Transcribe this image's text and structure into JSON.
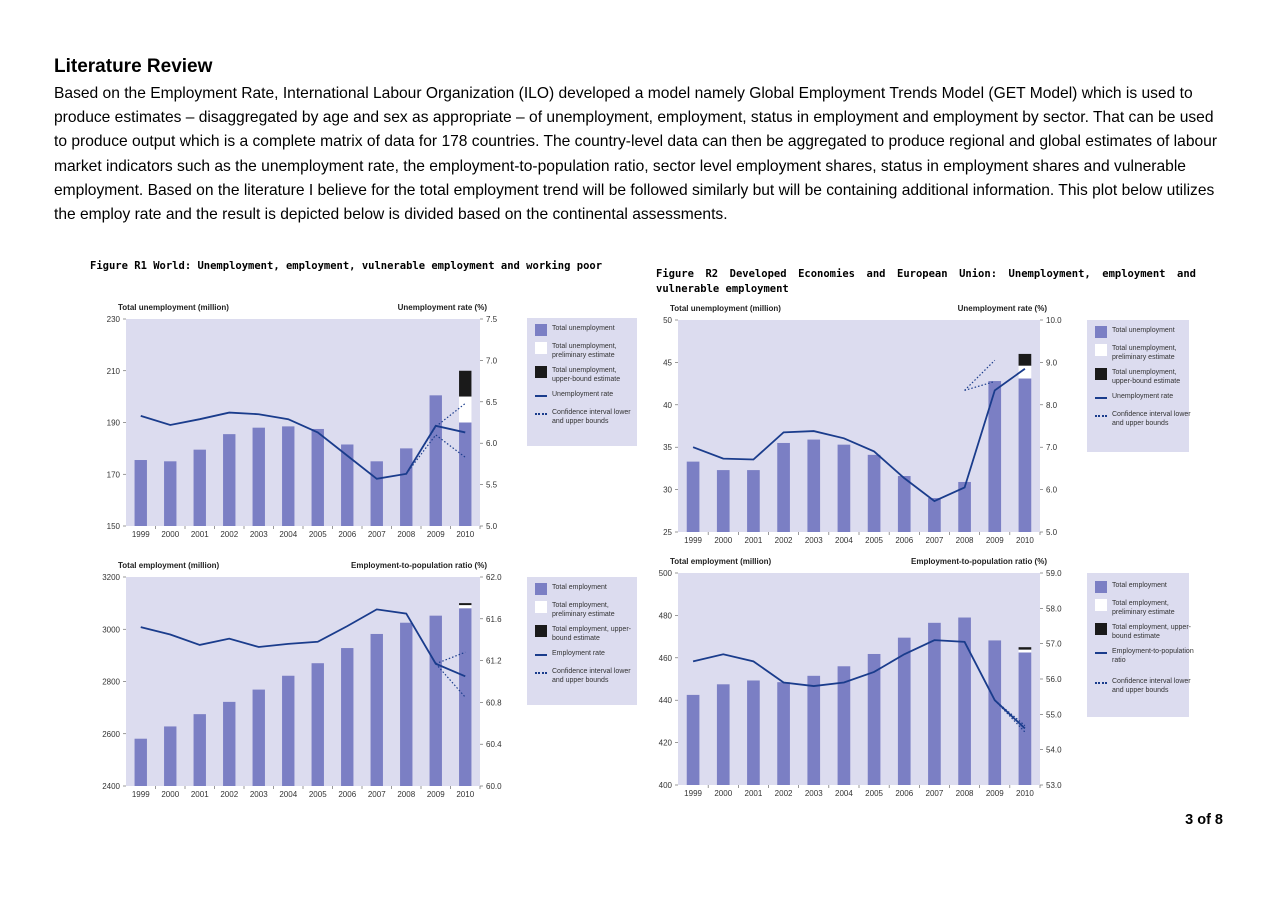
{
  "section_heading": "Literature Review",
  "paragraph": "Based on the Employment Rate, International Labour Organization (ILO) developed a model namely Global Employment Trends Model (GET Model) which is used to produce estimates – disaggregated by age and sex as appropriate – of unemployment, employment, status in employment and employment by sector. That can be used to produce output which is a complete matrix of data for 178 countries. The country-level data can then be aggregated to produce regional and global estimates of labour market indicators such as the unemployment rate, the employment-to-population ratio, sector level employment shares, status in employment shares and vulnerable employment. Based on the literature I believe for the total employment trend will be followed similarly but will be containing additional information. This plot below utilizes the employ rate and the result is depicted below is divided based on the continental assessments.",
  "figure_r1_title": "Figure R1 World: Unemployment, employment, vulnerable employment and working poor",
  "figure_r2_title": "Figure R2 Developed Economies and European Union: Unemployment, employment and vulnerable employment",
  "page_number": "3 of 8",
  "colors": {
    "bar": "#7b7fc4",
    "line": "#1a3c8c",
    "panel_bg": "#dcdcef",
    "upper_bound": "#1a1a1a"
  },
  "chart_data": [
    {
      "id": "r1-top",
      "type": "bar",
      "left_axis_title": "Total unemployment (million)",
      "right_axis_title": "Unemployment rate (%)",
      "categories": [
        "1999",
        "2000",
        "2001",
        "2002",
        "2003",
        "2004",
        "2005",
        "2006",
        "2007",
        "2008",
        "2009",
        "2010"
      ],
      "ylim": [
        150,
        230
      ],
      "yticks": [
        150,
        170,
        190,
        210,
        230
      ],
      "y2lim": [
        5.0,
        7.5
      ],
      "y2ticks": [
        "5.0",
        "5.5",
        "6.0",
        "6.5",
        "7.0",
        "7.5"
      ],
      "series": [
        {
          "name": "Total unemployment",
          "kind": "bar",
          "values": [
            175.5,
            175,
            179.5,
            185.5,
            188,
            188.5,
            187.5,
            181.5,
            175,
            180,
            200.5,
            190
          ]
        },
        {
          "name": "Total unemployment, preliminary estimate",
          "kind": "bar-white",
          "values": [
            null,
            null,
            null,
            null,
            null,
            null,
            null,
            null,
            null,
            null,
            null,
            200
          ]
        },
        {
          "name": "Total unemployment, upper-bound estimate",
          "kind": "bar-black",
          "values": [
            null,
            null,
            null,
            null,
            null,
            null,
            null,
            null,
            null,
            null,
            null,
            210
          ]
        },
        {
          "name": "Unemployment rate",
          "kind": "line",
          "axis": "right",
          "values": [
            6.33,
            6.22,
            6.29,
            6.37,
            6.35,
            6.29,
            6.13,
            5.85,
            5.57,
            5.63,
            6.21,
            6.13
          ]
        },
        {
          "name": "Confidence interval lower and upper bounds",
          "kind": "ci",
          "axis": "right",
          "from_index": 9,
          "start": 5.63,
          "upper": [
            6.2,
            6.48
          ],
          "lower": [
            6.1,
            5.83
          ]
        }
      ],
      "legend": [
        "Total unemployment",
        "Total unemployment, preliminary estimate",
        "Total unemployment, upper-bound estimate",
        "Unemployment rate",
        "Confidence interval lower and upper bounds"
      ]
    },
    {
      "id": "r1-bottom",
      "type": "bar",
      "left_axis_title": "Total employment (million)",
      "right_axis_title": "Employment-to-population ratio (%)",
      "categories": [
        "1999",
        "2000",
        "2001",
        "2002",
        "2003",
        "2004",
        "2005",
        "2006",
        "2007",
        "2008",
        "2009",
        "2010"
      ],
      "ylim": [
        2400,
        3200
      ],
      "yticks": [
        2400,
        2600,
        2800,
        3000,
        3200
      ],
      "y2lim": [
        60.0,
        62.0
      ],
      "y2ticks": [
        "60.0",
        "60.4",
        "60.8",
        "61.2",
        "61.6",
        "62.0"
      ],
      "series": [
        {
          "name": "Total employment",
          "kind": "bar",
          "values": [
            2581,
            2628,
            2675,
            2722,
            2769,
            2822,
            2870,
            2928,
            2982,
            3025,
            3052,
            3080
          ]
        },
        {
          "name": "Total employment, preliminary estimate",
          "kind": "bar-white",
          "values": [
            null,
            null,
            null,
            null,
            null,
            null,
            null,
            null,
            null,
            null,
            null,
            3092
          ]
        },
        {
          "name": "Total employment, upper-bound estimate",
          "kind": "bar-black",
          "values": [
            null,
            null,
            null,
            null,
            null,
            null,
            null,
            null,
            null,
            null,
            null,
            3100
          ]
        },
        {
          "name": "Employment rate",
          "kind": "line",
          "axis": "right",
          "values": [
            61.52,
            61.45,
            61.35,
            61.41,
            61.33,
            61.36,
            61.38,
            61.53,
            61.69,
            61.65,
            61.17,
            61.05
          ]
        },
        {
          "name": "Confidence interval lower and upper bounds",
          "kind": "ci",
          "axis": "right",
          "from_index": 10,
          "start": 61.17,
          "upper": [
            61.28
          ],
          "lower": [
            60.85
          ]
        }
      ],
      "legend": [
        "Total employment",
        "Total employment, preliminary estimate",
        "Total employment, upper-bound estimate",
        "Employment rate",
        "Confidence interval lower and upper bounds"
      ]
    },
    {
      "id": "r2-top",
      "type": "bar",
      "left_axis_title": "Total unemployment (million)",
      "right_axis_title": "Unemployment rate (%)",
      "categories": [
        "1999",
        "2000",
        "2001",
        "2002",
        "2003",
        "2004",
        "2005",
        "2006",
        "2007",
        "2008",
        "2009",
        "2010"
      ],
      "ylim": [
        25,
        50
      ],
      "yticks": [
        25,
        30,
        35,
        40,
        45,
        50
      ],
      "y2lim": [
        5.0,
        10.0
      ],
      "y2ticks": [
        "5.0",
        "6.0",
        "7.0",
        "8.0",
        "9.0",
        "10.0"
      ],
      "series": [
        {
          "name": "Total unemployment",
          "kind": "bar",
          "values": [
            33.3,
            32.3,
            32.3,
            35.5,
            35.9,
            35.3,
            34.1,
            31.6,
            29.0,
            30.9,
            42.8,
            43.1
          ]
        },
        {
          "name": "Total unemployment, preliminary estimate",
          "kind": "bar-white",
          "values": [
            null,
            null,
            null,
            null,
            null,
            null,
            null,
            null,
            null,
            null,
            null,
            44.6
          ]
        },
        {
          "name": "Total unemployment, upper-bound estimate",
          "kind": "bar-black",
          "values": [
            null,
            null,
            null,
            null,
            null,
            null,
            null,
            null,
            null,
            null,
            null,
            46.0
          ]
        },
        {
          "name": "Unemployment rate",
          "kind": "line",
          "axis": "right",
          "values": [
            7.0,
            6.73,
            6.71,
            7.35,
            7.38,
            7.21,
            6.9,
            6.27,
            5.73,
            6.05,
            8.34,
            8.85
          ]
        },
        {
          "name": "Confidence interval lower and upper bounds",
          "kind": "ci",
          "axis": "right",
          "from_index": 9,
          "start": 8.34,
          "upper": [
            9.05
          ],
          "lower": [
            8.55
          ]
        }
      ],
      "legend": [
        "Total unemployment",
        "Total unemployment, preliminary estimate",
        "Total unemployment, upper-bound estimate",
        "Unemployment rate",
        "Confidence interval lower and upper bounds"
      ]
    },
    {
      "id": "r2-bottom",
      "type": "bar",
      "left_axis_title": "Total employment (million)",
      "right_axis_title": "Employment-to-population ratio (%)",
      "categories": [
        "1999",
        "2000",
        "2001",
        "2002",
        "2003",
        "2004",
        "2005",
        "2006",
        "2007",
        "2008",
        "2009",
        "2010"
      ],
      "ylim": [
        400,
        500
      ],
      "yticks": [
        400,
        420,
        440,
        460,
        480,
        500
      ],
      "y2lim": [
        53.0,
        59.0
      ],
      "y2ticks": [
        "53.0",
        "54.0",
        "55.0",
        "56.0",
        "57.0",
        "58.0",
        "59.0"
      ],
      "series": [
        {
          "name": "Total employment",
          "kind": "bar",
          "values": [
            442.5,
            447.5,
            449.3,
            448.5,
            451.5,
            456,
            461.8,
            469.5,
            476.5,
            479,
            468.2,
            462.5
          ]
        },
        {
          "name": "Total employment, preliminary estimate",
          "kind": "bar-white",
          "values": [
            null,
            null,
            null,
            null,
            null,
            null,
            null,
            null,
            null,
            null,
            null,
            463.8
          ]
        },
        {
          "name": "Total employment, upper-bound estimate",
          "kind": "bar-black",
          "values": [
            null,
            null,
            null,
            null,
            null,
            null,
            null,
            null,
            null,
            null,
            null,
            465
          ]
        },
        {
          "name": "Employment-to-population ratio",
          "kind": "line",
          "axis": "right",
          "values": [
            56.5,
            56.7,
            56.5,
            55.9,
            55.8,
            55.9,
            56.2,
            56.7,
            57.1,
            57.05,
            55.4,
            54.6
          ]
        },
        {
          "name": "Confidence interval lower and upper bounds",
          "kind": "ci",
          "axis": "right",
          "from_index": 10,
          "start": 55.4,
          "upper": [
            54.68
          ],
          "lower": [
            54.5
          ]
        }
      ],
      "legend": [
        "Total employment",
        "Total employment, preliminary estimate",
        "Total employment, upper-bound estimate",
        "Employment-to-population ratio",
        "Confidence interval lower and upper bounds"
      ]
    }
  ]
}
